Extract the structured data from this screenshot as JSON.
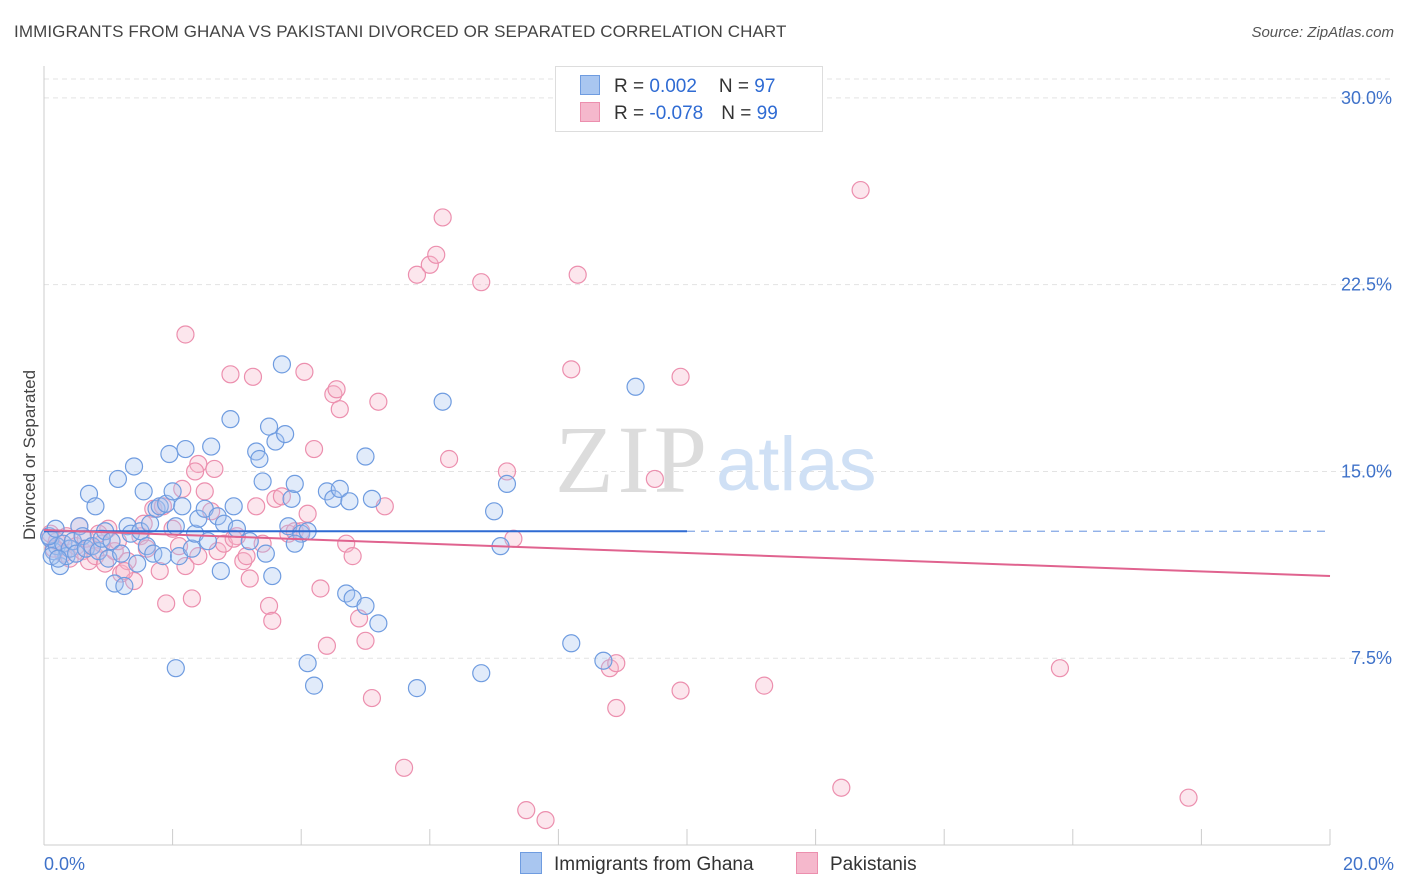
{
  "title": "IMMIGRANTS FROM GHANA VS PAKISTANI DIVORCED OR SEPARATED CORRELATION CHART",
  "source": "Source: ZipAtlas.com",
  "watermark": {
    "zip": "ZIP",
    "atlas": "atlas"
  },
  "legend": {
    "ghana": {
      "r_label": "R = ",
      "r_value": "0.002",
      "n_label": "N = ",
      "n_value": "97"
    },
    "pakistani": {
      "r_label": "R = ",
      "r_value": "-0.078",
      "n_label": "N = ",
      "n_value": "99"
    }
  },
  "colors": {
    "ghana_fill": "#a9c6f0",
    "ghana_stroke": "#6f9ce0",
    "ghana_line": "#2f6bd3",
    "pak_fill": "#f5b8cc",
    "pak_stroke": "#ec8fae",
    "pak_line": "#e0638f",
    "tick_text": "#3f72c9",
    "grid": "#e3e3e3"
  },
  "chart_data": {
    "type": "scatter",
    "title": "IMMIGRANTS FROM GHANA VS PAKISTANI DIVORCED OR SEPARATED CORRELATION CHART",
    "xlabel": "",
    "ylabel": "Divorced or Separated",
    "xlim": [
      0,
      20
    ],
    "ylim": [
      0,
      31
    ],
    "x_tick_labels": [
      "0.0%",
      "20.0%"
    ],
    "y_ticks": [
      7.5,
      15.0,
      22.5,
      30.0
    ],
    "y_tick_labels": [
      "7.5%",
      "15.0%",
      "22.5%",
      "30.0%"
    ],
    "grid": true,
    "legend_position": "top-center and bottom",
    "series": [
      {
        "name": "Immigrants from Ghana",
        "R": 0.002,
        "N": 97,
        "trend": {
          "x": [
            0,
            10
          ],
          "y": [
            12.6,
            12.6
          ],
          "dashed_extension_to_x": 20
        },
        "points": [
          [
            0.1,
            12.3
          ],
          [
            0.15,
            11.8
          ],
          [
            0.2,
            12.0
          ],
          [
            0.25,
            11.2
          ],
          [
            0.3,
            12.1
          ],
          [
            0.35,
            11.6
          ],
          [
            0.4,
            11.9
          ],
          [
            0.45,
            12.2
          ],
          [
            0.5,
            11.7
          ],
          [
            0.55,
            12.8
          ],
          [
            0.6,
            12.4
          ],
          [
            0.65,
            11.9
          ],
          [
            0.7,
            14.1
          ],
          [
            0.75,
            12.0
          ],
          [
            0.8,
            13.6
          ],
          [
            0.85,
            11.8
          ],
          [
            0.9,
            12.3
          ],
          [
            0.95,
            12.6
          ],
          [
            1.0,
            11.5
          ],
          [
            1.05,
            12.2
          ],
          [
            1.1,
            10.5
          ],
          [
            1.15,
            14.7
          ],
          [
            1.2,
            11.7
          ],
          [
            1.25,
            10.4
          ],
          [
            1.3,
            12.8
          ],
          [
            1.35,
            12.5
          ],
          [
            1.4,
            15.2
          ],
          [
            1.45,
            11.3
          ],
          [
            1.5,
            12.6
          ],
          [
            1.55,
            14.2
          ],
          [
            1.6,
            12.0
          ],
          [
            1.65,
            12.9
          ],
          [
            1.7,
            11.7
          ],
          [
            1.75,
            13.5
          ],
          [
            1.8,
            13.6
          ],
          [
            1.85,
            11.6
          ],
          [
            1.9,
            13.7
          ],
          [
            1.95,
            15.7
          ],
          [
            2.0,
            14.2
          ],
          [
            2.05,
            12.8
          ],
          [
            2.1,
            11.6
          ],
          [
            2.15,
            13.6
          ],
          [
            2.2,
            15.9
          ],
          [
            2.3,
            11.9
          ],
          [
            2.35,
            12.5
          ],
          [
            2.4,
            13.1
          ],
          [
            2.5,
            13.5
          ],
          [
            2.55,
            12.2
          ],
          [
            2.6,
            16.0
          ],
          [
            2.7,
            13.2
          ],
          [
            2.75,
            11.0
          ],
          [
            2.8,
            12.9
          ],
          [
            2.9,
            17.1
          ],
          [
            2.95,
            13.6
          ],
          [
            3.0,
            12.7
          ],
          [
            3.2,
            12.2
          ],
          [
            3.3,
            15.8
          ],
          [
            3.35,
            15.5
          ],
          [
            3.4,
            14.6
          ],
          [
            3.45,
            11.7
          ],
          [
            3.5,
            16.8
          ],
          [
            3.55,
            10.8
          ],
          [
            3.6,
            16.2
          ],
          [
            3.7,
            19.3
          ],
          [
            3.75,
            16.5
          ],
          [
            3.8,
            12.8
          ],
          [
            3.85,
            13.9
          ],
          [
            3.9,
            14.5
          ],
          [
            4.0,
            12.5
          ],
          [
            4.1,
            12.6
          ],
          [
            3.9,
            12.1
          ],
          [
            4.2,
            6.4
          ],
          [
            4.4,
            14.2
          ],
          [
            4.5,
            13.9
          ],
          [
            4.6,
            14.3
          ],
          [
            4.7,
            10.1
          ],
          [
            4.8,
            9.9
          ],
          [
            5.0,
            15.6
          ],
          [
            5.1,
            13.9
          ],
          [
            5.2,
            8.9
          ],
          [
            4.75,
            13.8
          ],
          [
            5.0,
            9.6
          ],
          [
            4.1,
            7.3
          ],
          [
            5.8,
            6.3
          ],
          [
            6.2,
            17.8
          ],
          [
            6.8,
            6.9
          ],
          [
            7.0,
            13.4
          ],
          [
            7.1,
            12.0
          ],
          [
            7.2,
            14.5
          ],
          [
            8.2,
            8.1
          ],
          [
            8.7,
            7.4
          ],
          [
            9.2,
            18.4
          ],
          [
            2.05,
            7.1
          ],
          [
            0.08,
            12.4
          ],
          [
            0.12,
            11.6
          ],
          [
            0.18,
            12.7
          ],
          [
            0.22,
            11.5
          ]
        ]
      },
      {
        "name": "Pakistanis",
        "R": -0.078,
        "N": 99,
        "trend": {
          "x": [
            0,
            20
          ],
          "y": [
            12.65,
            10.8
          ]
        },
        "points": [
          [
            0.1,
            12.5
          ],
          [
            0.15,
            11.9
          ],
          [
            0.2,
            12.2
          ],
          [
            0.3,
            11.7
          ],
          [
            0.35,
            12.4
          ],
          [
            0.4,
            11.5
          ],
          [
            0.5,
            12.0
          ],
          [
            0.6,
            11.8
          ],
          [
            0.65,
            12.3
          ],
          [
            0.7,
            11.4
          ],
          [
            0.75,
            12.0
          ],
          [
            0.8,
            11.6
          ],
          [
            0.9,
            12.1
          ],
          [
            0.95,
            11.3
          ],
          [
            1.0,
            12.7
          ],
          [
            1.1,
            11.8
          ],
          [
            1.15,
            12.2
          ],
          [
            1.2,
            10.9
          ],
          [
            1.3,
            11.4
          ],
          [
            1.4,
            10.6
          ],
          [
            1.5,
            12.4
          ],
          [
            1.6,
            11.9
          ],
          [
            1.7,
            13.5
          ],
          [
            1.8,
            11.0
          ],
          [
            1.9,
            9.7
          ],
          [
            2.0,
            12.7
          ],
          [
            2.1,
            12.0
          ],
          [
            2.2,
            11.2
          ],
          [
            2.3,
            9.9
          ],
          [
            2.4,
            11.6
          ],
          [
            2.5,
            14.2
          ],
          [
            2.6,
            13.4
          ],
          [
            2.7,
            11.8
          ],
          [
            2.8,
            12.1
          ],
          [
            2.9,
            18.9
          ],
          [
            3.0,
            12.4
          ],
          [
            3.1,
            11.4
          ],
          [
            3.2,
            10.7
          ],
          [
            3.3,
            13.6
          ],
          [
            3.4,
            12.1
          ],
          [
            3.5,
            9.6
          ],
          [
            3.55,
            9.0
          ],
          [
            3.6,
            13.9
          ],
          [
            3.7,
            14.0
          ],
          [
            3.8,
            12.5
          ],
          [
            3.9,
            12.6
          ],
          [
            4.0,
            12.6
          ],
          [
            4.05,
            19.0
          ],
          [
            4.1,
            13.3
          ],
          [
            4.2,
            15.9
          ],
          [
            4.3,
            10.3
          ],
          [
            4.4,
            8.0
          ],
          [
            4.5,
            18.1
          ],
          [
            4.55,
            18.3
          ],
          [
            4.6,
            17.5
          ],
          [
            4.7,
            12.1
          ],
          [
            4.8,
            11.6
          ],
          [
            4.9,
            9.1
          ],
          [
            5.0,
            8.2
          ],
          [
            5.1,
            5.9
          ],
          [
            5.2,
            17.8
          ],
          [
            5.3,
            13.6
          ],
          [
            5.6,
            3.1
          ],
          [
            5.8,
            22.9
          ],
          [
            6.0,
            23.3
          ],
          [
            6.1,
            23.7
          ],
          [
            6.2,
            25.2
          ],
          [
            6.3,
            15.5
          ],
          [
            6.8,
            22.6
          ],
          [
            7.2,
            15.0
          ],
          [
            7.3,
            12.3
          ],
          [
            7.5,
            1.4
          ],
          [
            7.8,
            1.0
          ],
          [
            8.2,
            19.1
          ],
          [
            8.3,
            22.9
          ],
          [
            8.8,
            7.1
          ],
          [
            8.9,
            7.3
          ],
          [
            8.9,
            5.5
          ],
          [
            9.5,
            14.7
          ],
          [
            9.9,
            6.2
          ],
          [
            9.9,
            18.8
          ],
          [
            11.2,
            6.4
          ],
          [
            12.4,
            2.3
          ],
          [
            12.7,
            26.3
          ],
          [
            15.8,
            7.1
          ],
          [
            17.8,
            1.9
          ],
          [
            2.2,
            20.5
          ],
          [
            2.4,
            15.3
          ],
          [
            2.65,
            15.1
          ],
          [
            3.25,
            18.8
          ],
          [
            3.15,
            11.6
          ],
          [
            0.55,
            12.8
          ],
          [
            0.85,
            12.5
          ],
          [
            1.25,
            11.0
          ],
          [
            1.55,
            12.9
          ],
          [
            1.85,
            13.6
          ],
          [
            2.15,
            14.3
          ],
          [
            2.35,
            15.0
          ],
          [
            2.95,
            12.3
          ]
        ]
      }
    ]
  },
  "bottom_legend": {
    "ghana": "Immigrants from Ghana",
    "pakistani": "Pakistanis"
  }
}
